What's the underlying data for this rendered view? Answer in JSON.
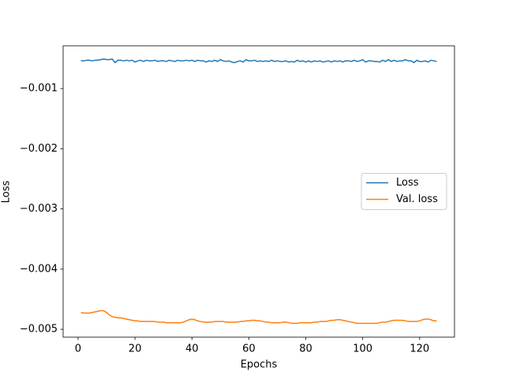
{
  "chart_data": {
    "type": "line",
    "xlabel": "Epochs",
    "ylabel": "Loss",
    "x": [
      1,
      2,
      3,
      4,
      5,
      6,
      7,
      8,
      9,
      10,
      11,
      12,
      13,
      14,
      15,
      16,
      17,
      18,
      19,
      20,
      21,
      22,
      23,
      24,
      25,
      26,
      27,
      28,
      29,
      30,
      31,
      32,
      33,
      34,
      35,
      36,
      37,
      38,
      39,
      40,
      41,
      42,
      43,
      44,
      45,
      46,
      47,
      48,
      49,
      50,
      51,
      52,
      53,
      54,
      55,
      56,
      57,
      58,
      59,
      60,
      61,
      62,
      63,
      64,
      65,
      66,
      67,
      68,
      69,
      70,
      71,
      72,
      73,
      74,
      75,
      76,
      77,
      78,
      79,
      80,
      81,
      82,
      83,
      84,
      85,
      86,
      87,
      88,
      89,
      90,
      91,
      92,
      93,
      94,
      95,
      96,
      97,
      98,
      99,
      100,
      101,
      102,
      103,
      104,
      105,
      106,
      107,
      108,
      109,
      110,
      111,
      112,
      113,
      114,
      115,
      116,
      117,
      118,
      119,
      120,
      121,
      122,
      123,
      124,
      125,
      126
    ],
    "series": [
      {
        "name": "Loss",
        "color": "#1f77b4",
        "values": [
          -0.00054,
          -0.00054,
          -0.00053,
          -0.00053,
          -0.00054,
          -0.00053,
          -0.00053,
          -0.00052,
          -0.00051,
          -0.00052,
          -0.00052,
          -0.00051,
          -0.00057,
          -0.00053,
          -0.00053,
          -0.00054,
          -0.00053,
          -0.00054,
          -0.00053,
          -0.00056,
          -0.00054,
          -0.00053,
          -0.00055,
          -0.00053,
          -0.00054,
          -0.00054,
          -0.00053,
          -0.00055,
          -0.00054,
          -0.00054,
          -0.00055,
          -0.00053,
          -0.00054,
          -0.00055,
          -0.00053,
          -0.00054,
          -0.00054,
          -0.00053,
          -0.00054,
          -0.00053,
          -0.00055,
          -0.00053,
          -0.00054,
          -0.00054,
          -0.00056,
          -0.00054,
          -0.00055,
          -0.00053,
          -0.00055,
          -0.00052,
          -0.00054,
          -0.00055,
          -0.00054,
          -0.00056,
          -0.00057,
          -0.00055,
          -0.00054,
          -0.00056,
          -0.00052,
          -0.00054,
          -0.00054,
          -0.00053,
          -0.00055,
          -0.00054,
          -0.00055,
          -0.00054,
          -0.00055,
          -0.00053,
          -0.00055,
          -0.00054,
          -0.00055,
          -0.00055,
          -0.00054,
          -0.00056,
          -0.00055,
          -0.00056,
          -0.00053,
          -0.00055,
          -0.00054,
          -0.00056,
          -0.00054,
          -0.00056,
          -0.00054,
          -0.00055,
          -0.00054,
          -0.00056,
          -0.00055,
          -0.00054,
          -0.00056,
          -0.00054,
          -0.00055,
          -0.00054,
          -0.00056,
          -0.00054,
          -0.00054,
          -0.00055,
          -0.00053,
          -0.00055,
          -0.00054,
          -0.00052,
          -0.00056,
          -0.00054,
          -0.00054,
          -0.00055,
          -0.00055,
          -0.00056,
          -0.00053,
          -0.00055,
          -0.00052,
          -0.00055,
          -0.00053,
          -0.00055,
          -0.00054,
          -0.00054,
          -0.00052,
          -0.00054,
          -0.00054,
          -0.00057,
          -0.00053,
          -0.00055,
          -0.00055,
          -0.00054,
          -0.00056,
          -0.00053,
          -0.00054,
          -0.00055
        ]
      },
      {
        "name": "Val. loss",
        "color": "#ff7f0e",
        "values": [
          -0.00472,
          -0.00473,
          -0.00473,
          -0.00473,
          -0.00472,
          -0.00471,
          -0.0047,
          -0.00469,
          -0.00469,
          -0.00472,
          -0.00476,
          -0.00479,
          -0.0048,
          -0.00481,
          -0.00481,
          -0.00482,
          -0.00483,
          -0.00484,
          -0.00485,
          -0.00486,
          -0.00486,
          -0.00487,
          -0.00487,
          -0.00487,
          -0.00487,
          -0.00487,
          -0.00487,
          -0.00488,
          -0.00488,
          -0.00488,
          -0.00489,
          -0.00489,
          -0.00489,
          -0.00489,
          -0.00489,
          -0.00489,
          -0.00488,
          -0.00486,
          -0.00484,
          -0.00483,
          -0.00484,
          -0.00486,
          -0.00487,
          -0.00488,
          -0.00488,
          -0.00488,
          -0.00488,
          -0.00487,
          -0.00487,
          -0.00487,
          -0.00487,
          -0.00488,
          -0.00488,
          -0.00488,
          -0.00488,
          -0.00488,
          -0.00487,
          -0.00487,
          -0.00486,
          -0.00486,
          -0.00485,
          -0.00485,
          -0.00486,
          -0.00486,
          -0.00487,
          -0.00488,
          -0.00488,
          -0.00489,
          -0.00489,
          -0.00489,
          -0.00489,
          -0.00488,
          -0.00488,
          -0.00489,
          -0.0049,
          -0.0049,
          -0.0049,
          -0.00489,
          -0.00489,
          -0.00489,
          -0.00489,
          -0.00489,
          -0.00488,
          -0.00488,
          -0.00487,
          -0.00487,
          -0.00487,
          -0.00486,
          -0.00485,
          -0.00485,
          -0.00484,
          -0.00484,
          -0.00485,
          -0.00486,
          -0.00487,
          -0.00488,
          -0.00489,
          -0.0049,
          -0.0049,
          -0.0049,
          -0.0049,
          -0.0049,
          -0.0049,
          -0.0049,
          -0.0049,
          -0.00489,
          -0.00488,
          -0.00488,
          -0.00487,
          -0.00486,
          -0.00485,
          -0.00485,
          -0.00485,
          -0.00485,
          -0.00486,
          -0.00487,
          -0.00487,
          -0.00487,
          -0.00487,
          -0.00486,
          -0.00484,
          -0.00483,
          -0.00483,
          -0.00484,
          -0.00486,
          -0.00486
        ]
      }
    ],
    "xlim": [
      -5.25,
      132.25
    ],
    "xticks": [
      0,
      20,
      40,
      60,
      80,
      100,
      120
    ],
    "ylim": [
      -0.00513,
      -0.00029
    ],
    "yticks": [
      {
        "value": -0.005,
        "label": "−0.005"
      },
      {
        "value": -0.004,
        "label": "−0.004"
      },
      {
        "value": -0.003,
        "label": "−0.003"
      },
      {
        "value": -0.002,
        "label": "−0.002"
      },
      {
        "value": -0.001,
        "label": "−0.001"
      }
    ],
    "grid": false,
    "legend": "center right"
  }
}
